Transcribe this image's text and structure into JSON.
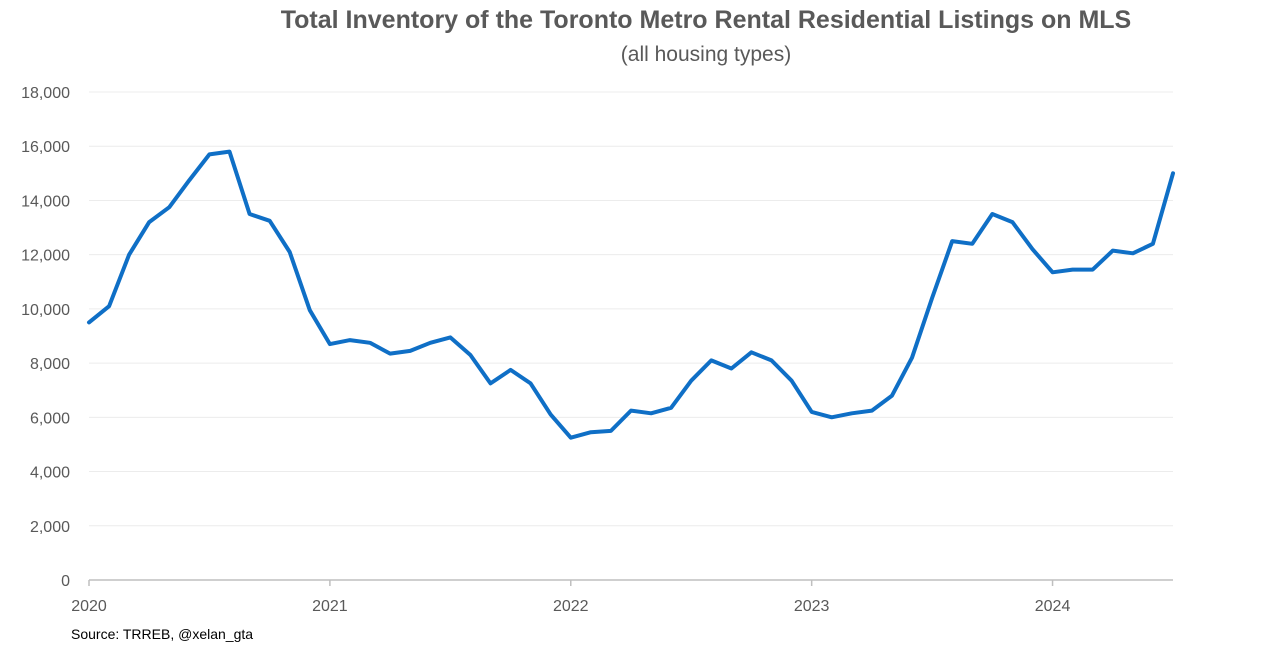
{
  "chart_data": {
    "type": "line",
    "title": "Total Inventory of the Toronto Metro Rental Residential Listings on MLS",
    "subtitle": "(all housing types)",
    "source": "Source: TRREB, @xelan_gta",
    "xlabel": "",
    "ylabel": "",
    "ylim": [
      0,
      18000
    ],
    "yticks": [
      0,
      2000,
      4000,
      6000,
      8000,
      10000,
      12000,
      14000,
      16000,
      18000
    ],
    "ytick_labels": [
      "0",
      "2,000",
      "4,000",
      "6,000",
      "8,000",
      "10,000",
      "12,000",
      "14,000",
      "16,000",
      "18,000"
    ],
    "xticks": [
      0,
      12,
      24,
      36,
      48
    ],
    "xtick_labels": [
      "2020",
      "2021",
      "2022",
      "2023",
      "2024"
    ],
    "grid": true,
    "series": [
      {
        "name": "Total Inventory",
        "color": "#0f6fc6",
        "x": [
          0,
          1,
          2,
          3,
          4,
          5,
          6,
          7,
          8,
          9,
          10,
          11,
          12,
          13,
          14,
          15,
          16,
          17,
          18,
          19,
          20,
          21,
          22,
          23,
          24,
          25,
          26,
          27,
          28,
          29,
          30,
          31,
          32,
          33,
          34,
          35,
          36,
          37,
          38,
          39,
          40,
          41,
          42,
          43,
          44,
          45,
          46,
          47,
          48,
          49,
          50,
          51,
          52,
          53,
          54
        ],
        "values": [
          9500,
          10100,
          12000,
          13200,
          13750,
          14750,
          15700,
          15800,
          13500,
          13250,
          12100,
          9950,
          8700,
          8850,
          8750,
          8350,
          8450,
          8750,
          8950,
          8300,
          7250,
          7750,
          7250,
          6100,
          5250,
          5450,
          5500,
          6250,
          6150,
          6350,
          7350,
          8100,
          7800,
          8400,
          8100,
          7350,
          6200,
          6000,
          6150,
          6250,
          6800,
          8200,
          10400,
          12500,
          12400,
          13500,
          13200,
          12200,
          11350,
          11450,
          11450,
          12150,
          12050,
          12400,
          15000
        ]
      }
    ]
  }
}
